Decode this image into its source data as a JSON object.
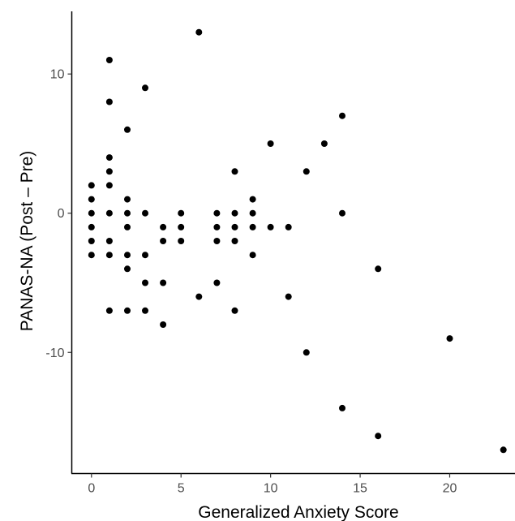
{
  "chart_data": {
    "type": "scatter",
    "title": "",
    "xlabel": "Generalized Anxiety Score",
    "ylabel": "PANAS-NA (Post – Pre)",
    "xlim": [
      -1.1,
      23.6
    ],
    "ylim": [
      -18.7,
      14.5
    ],
    "xticks": [
      0,
      5,
      10,
      15,
      20
    ],
    "yticks": [
      -10,
      0,
      10
    ],
    "grid": false,
    "point_color": "#000000",
    "points": [
      [
        0,
        2
      ],
      [
        0,
        1
      ],
      [
        0,
        0
      ],
      [
        0,
        -1
      ],
      [
        0,
        -2
      ],
      [
        0,
        -3
      ],
      [
        1,
        11
      ],
      [
        1,
        8
      ],
      [
        1,
        4
      ],
      [
        1,
        3
      ],
      [
        1,
        2
      ],
      [
        1,
        0
      ],
      [
        1,
        -2
      ],
      [
        1,
        -3
      ],
      [
        1,
        -7
      ],
      [
        2,
        6
      ],
      [
        2,
        1
      ],
      [
        2,
        0
      ],
      [
        2,
        -1
      ],
      [
        2,
        -3
      ],
      [
        2,
        -4
      ],
      [
        2,
        -7
      ],
      [
        3,
        9
      ],
      [
        3,
        0
      ],
      [
        3,
        -3
      ],
      [
        3,
        -5
      ],
      [
        3,
        -7
      ],
      [
        4,
        -1
      ],
      [
        4,
        -2
      ],
      [
        4,
        -5
      ],
      [
        4,
        -8
      ],
      [
        5,
        0
      ],
      [
        5,
        -1
      ],
      [
        5,
        -2
      ],
      [
        6,
        13
      ],
      [
        6,
        -6
      ],
      [
        7,
        0
      ],
      [
        7,
        -1
      ],
      [
        7,
        -2
      ],
      [
        7,
        -5
      ],
      [
        8,
        3
      ],
      [
        8,
        0
      ],
      [
        8,
        -1
      ],
      [
        8,
        -2
      ],
      [
        8,
        -7
      ],
      [
        9,
        1
      ],
      [
        9,
        0
      ],
      [
        9,
        -1
      ],
      [
        9,
        -3
      ],
      [
        10,
        5
      ],
      [
        10,
        -1
      ],
      [
        11,
        -1
      ],
      [
        11,
        -6
      ],
      [
        12,
        3
      ],
      [
        12,
        -10
      ],
      [
        13,
        5
      ],
      [
        14,
        7
      ],
      [
        14,
        0
      ],
      [
        14,
        -14
      ],
      [
        16,
        -4
      ],
      [
        16,
        -16
      ],
      [
        20,
        -9
      ],
      [
        23,
        -17
      ]
    ]
  }
}
